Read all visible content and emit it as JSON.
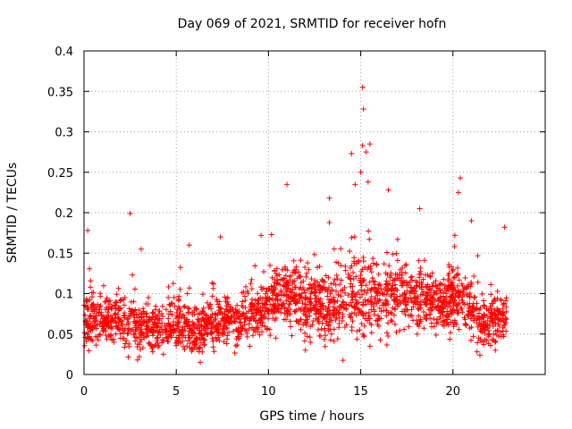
{
  "chart_data": {
    "type": "scatter",
    "title": "Day 069 of 2021, SRMTID for receiver hofn",
    "xlabel": "GPS time / hours",
    "ylabel": "SRMTID / TECUs",
    "xlim": [
      0,
      25
    ],
    "ylim": [
      0,
      0.4
    ],
    "xticks": [
      0,
      5,
      10,
      15,
      20
    ],
    "xtick_labels": [
      "0",
      "5",
      "10",
      "15",
      "20"
    ],
    "yticks": [
      0,
      0.05,
      0.1,
      0.15,
      0.2,
      0.25,
      0.3,
      0.35,
      0.4
    ],
    "ytick_labels": [
      "0",
      "0.05",
      "0.1",
      "0.15",
      "0.2",
      "0.25",
      "0.3",
      "0.35",
      "0.4"
    ],
    "grid": true,
    "marker": "+",
    "marker_color": "#ff0000",
    "series": [
      {
        "name": "SRMTID",
        "notes": "approximate envelope of dense scatter, read off gridlines",
        "x": [
          0.0,
          0.25,
          0.5,
          1.0,
          1.5,
          2.0,
          2.5,
          3.0,
          3.5,
          4.0,
          4.5,
          5.0,
          5.5,
          6.0,
          6.5,
          7.0,
          7.5,
          8.0,
          8.5,
          9.0,
          9.5,
          10.0,
          10.5,
          11.0,
          11.5,
          12.0,
          12.5,
          13.0,
          13.5,
          14.0,
          14.5,
          15.0,
          15.5,
          16.0,
          16.5,
          17.0,
          17.5,
          18.0,
          18.5,
          19.0,
          19.5,
          20.0,
          20.5,
          21.0,
          21.5,
          22.0,
          22.5,
          22.9
        ],
        "y_median": [
          0.07,
          0.07,
          0.07,
          0.068,
          0.07,
          0.068,
          0.062,
          0.06,
          0.06,
          0.058,
          0.062,
          0.065,
          0.062,
          0.052,
          0.058,
          0.062,
          0.065,
          0.066,
          0.066,
          0.07,
          0.078,
          0.088,
          0.095,
          0.098,
          0.095,
          0.085,
          0.09,
          0.088,
          0.085,
          0.092,
          0.1,
          0.1,
          0.095,
          0.09,
          0.095,
          0.1,
          0.1,
          0.1,
          0.095,
          0.085,
          0.085,
          0.095,
          0.1,
          0.08,
          0.065,
          0.065,
          0.068,
          0.07
        ],
        "y_spread": [
          0.03,
          0.035,
          0.03,
          0.025,
          0.025,
          0.028,
          0.03,
          0.028,
          0.025,
          0.025,
          0.025,
          0.028,
          0.028,
          0.025,
          0.025,
          0.025,
          0.025,
          0.025,
          0.025,
          0.028,
          0.03,
          0.035,
          0.035,
          0.04,
          0.035,
          0.035,
          0.035,
          0.04,
          0.04,
          0.045,
          0.045,
          0.05,
          0.045,
          0.04,
          0.04,
          0.04,
          0.038,
          0.035,
          0.035,
          0.03,
          0.03,
          0.035,
          0.035,
          0.035,
          0.03,
          0.028,
          0.028,
          0.028
        ]
      }
    ],
    "notable_points": [
      {
        "x": 15.1,
        "y": 0.355
      },
      {
        "x": 15.15,
        "y": 0.328
      },
      {
        "x": 15.1,
        "y": 0.283
      },
      {
        "x": 15.5,
        "y": 0.285
      },
      {
        "x": 15.3,
        "y": 0.275
      },
      {
        "x": 14.5,
        "y": 0.273
      },
      {
        "x": 15.4,
        "y": 0.238
      },
      {
        "x": 15.0,
        "y": 0.25
      },
      {
        "x": 14.7,
        "y": 0.235
      },
      {
        "x": 20.4,
        "y": 0.243
      },
      {
        "x": 20.3,
        "y": 0.225
      },
      {
        "x": 11.0,
        "y": 0.235
      },
      {
        "x": 13.3,
        "y": 0.218
      },
      {
        "x": 16.5,
        "y": 0.228
      },
      {
        "x": 18.2,
        "y": 0.205
      },
      {
        "x": 2.5,
        "y": 0.199
      },
      {
        "x": 0.2,
        "y": 0.178
      },
      {
        "x": 7.4,
        "y": 0.17
      },
      {
        "x": 9.6,
        "y": 0.172
      },
      {
        "x": 20.1,
        "y": 0.172
      },
      {
        "x": 21.0,
        "y": 0.19
      },
      {
        "x": 22.8,
        "y": 0.182
      },
      {
        "x": 5.7,
        "y": 0.16
      },
      {
        "x": 3.1,
        "y": 0.155
      },
      {
        "x": 6.3,
        "y": 0.015
      },
      {
        "x": 2.9,
        "y": 0.018
      },
      {
        "x": 3.0,
        "y": 0.022
      },
      {
        "x": 4.3,
        "y": 0.025
      },
      {
        "x": 22.3,
        "y": 0.03
      },
      {
        "x": 21.3,
        "y": 0.028
      },
      {
        "x": 12.0,
        "y": 0.03
      },
      {
        "x": 15.5,
        "y": 0.035
      }
    ]
  }
}
